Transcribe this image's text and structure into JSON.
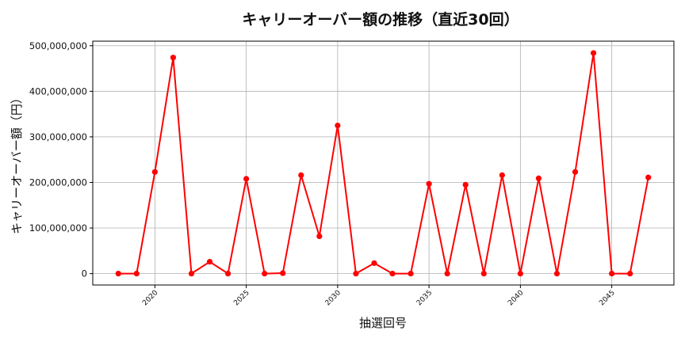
{
  "chart_data": {
    "type": "line",
    "title": "キャリーオーバー額の推移（直近30回）",
    "xlabel": "抽選回号",
    "ylabel": "キャリーオーバー額（円）",
    "xlim": [
      2016.6,
      2048.4
    ],
    "ylim": [
      -25000000,
      510000000
    ],
    "xticks": [
      2020,
      2025,
      2030,
      2035,
      2040,
      2045
    ],
    "xtick_labels": [
      "2020",
      "2025",
      "2030",
      "2035",
      "2040",
      "2045"
    ],
    "yticks": [
      0,
      100000000,
      200000000,
      300000000,
      400000000,
      500000000
    ],
    "ytick_labels": [
      "0",
      "100,000,000",
      "200,000,000",
      "300,000,000",
      "400,000,000",
      "500,000,000"
    ],
    "grid": true,
    "color": "#ff0000",
    "x": [
      2018,
      2019,
      2020,
      2021,
      2022,
      2023,
      2024,
      2025,
      2026,
      2027,
      2028,
      2029,
      2030,
      2031,
      2032,
      2033,
      2034,
      2035,
      2036,
      2037,
      2038,
      2039,
      2040,
      2041,
      2042,
      2043,
      2044,
      2045,
      2046,
      2047
    ],
    "values": [
      0,
      0,
      223000000,
      474000000,
      0,
      26000000,
      0,
      208000000,
      0,
      1000000,
      216000000,
      82000000,
      325000000,
      0,
      23000000,
      0,
      0,
      197000000,
      0,
      195000000,
      0,
      216000000,
      0,
      209000000,
      0,
      223000000,
      484000000,
      0,
      0,
      211000000
    ]
  }
}
